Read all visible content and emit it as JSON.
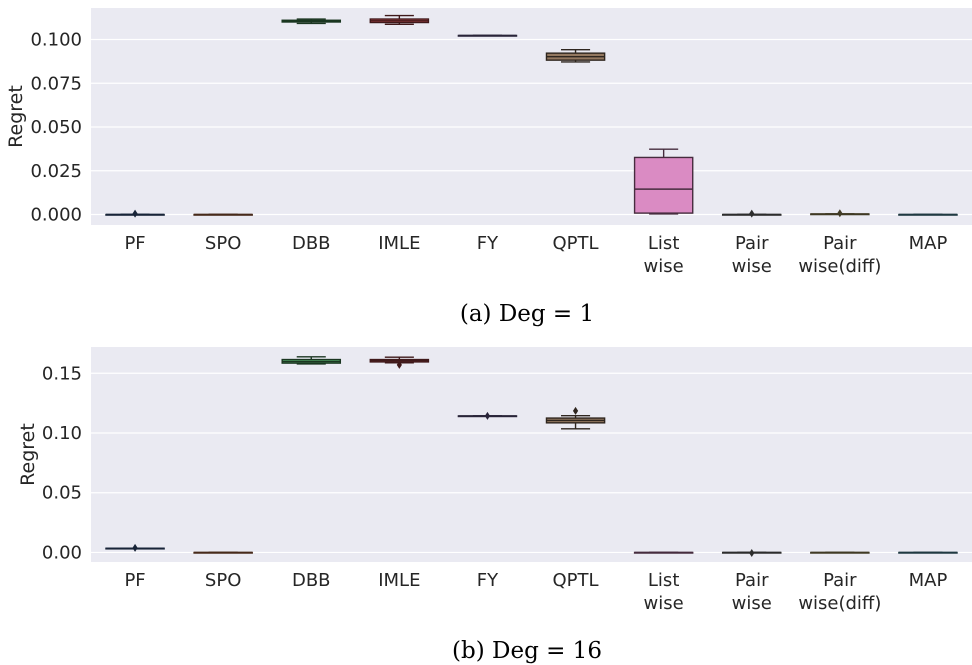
{
  "chart_data": [
    {
      "type": "box",
      "caption": "(a) Deg = 1",
      "ylabel": "Regret",
      "ylim": [
        -0.006,
        0.118
      ],
      "yticks": [
        0.0,
        0.025,
        0.05,
        0.075,
        0.1
      ],
      "ytick_labels": [
        "0.000",
        "0.025",
        "0.050",
        "0.075",
        "0.100"
      ],
      "grid": true,
      "categories": [
        [
          "PF"
        ],
        [
          "SPO"
        ],
        [
          "DBB"
        ],
        [
          "IMLE"
        ],
        [
          "FY"
        ],
        [
          "QPTL"
        ],
        [
          "List",
          "wise"
        ],
        [
          "Pair",
          "wise"
        ],
        [
          "Pair",
          "wise(diff)"
        ],
        [
          "MAP"
        ]
      ],
      "boxes": [
        {
          "min": 0.0,
          "q1": 0.0,
          "median": 0.0,
          "q3": 0.0,
          "max": 0.0,
          "outliers": [
            0.0005
          ],
          "color": "#4c72b0"
        },
        {
          "min": 0.0,
          "q1": 0.0,
          "median": 0.0,
          "q3": 0.0,
          "max": 0.0,
          "outliers": [],
          "color": "#dd8452"
        },
        {
          "min": 0.1092,
          "q1": 0.11,
          "median": 0.1105,
          "q3": 0.111,
          "max": 0.1117,
          "outliers": [],
          "color": "#55a868"
        },
        {
          "min": 0.1087,
          "q1": 0.1097,
          "median": 0.1107,
          "q3": 0.1117,
          "max": 0.1137,
          "outliers": [],
          "color": "#c44e52"
        },
        {
          "min": 0.1023,
          "q1": 0.1023,
          "median": 0.1023,
          "q3": 0.1023,
          "max": 0.1023,
          "outliers": [],
          "color": "#8172b3"
        },
        {
          "min": 0.0872,
          "q1": 0.0882,
          "median": 0.0902,
          "q3": 0.0922,
          "max": 0.0942,
          "outliers": [],
          "color": "#937860"
        },
        {
          "min": 0.0003,
          "q1": 0.0008,
          "median": 0.0145,
          "q3": 0.0326,
          "max": 0.0373,
          "outliers": [],
          "color": "#da8bc3"
        },
        {
          "min": 0.0,
          "q1": 0.0,
          "median": 0.0,
          "q3": 0.0,
          "max": 0.0,
          "outliers": [
            0.0005
          ],
          "color": "#8c8c8c"
        },
        {
          "min": 0.0003,
          "q1": 0.0003,
          "median": 0.0003,
          "q3": 0.0003,
          "max": 0.0003,
          "outliers": [
            0.0007
          ],
          "color": "#ccb974"
        },
        {
          "min": 0.0,
          "q1": 0.0,
          "median": 0.0,
          "q3": 0.0,
          "max": 0.0,
          "outliers": [],
          "color": "#64b5cd"
        }
      ]
    },
    {
      "type": "box",
      "caption": "(b) Deg = 16",
      "ylabel": "Regret",
      "ylim": [
        -0.008,
        0.172
      ],
      "yticks": [
        0.0,
        0.05,
        0.1,
        0.15
      ],
      "ytick_labels": [
        "0.00",
        "0.05",
        "0.10",
        "0.15"
      ],
      "grid": true,
      "categories": [
        [
          "PF"
        ],
        [
          "SPO"
        ],
        [
          "DBB"
        ],
        [
          "IMLE"
        ],
        [
          "FY"
        ],
        [
          "QPTL"
        ],
        [
          "List",
          "wise"
        ],
        [
          "Pair",
          "wise"
        ],
        [
          "Pair",
          "wise(diff)"
        ],
        [
          "MAP"
        ]
      ],
      "boxes": [
        {
          "min": 0.0035,
          "q1": 0.0035,
          "median": 0.0035,
          "q3": 0.0035,
          "max": 0.0035,
          "outliers": [
            0.0038
          ],
          "color": "#4c72b0"
        },
        {
          "min": 0.0,
          "q1": 0.0,
          "median": 0.0,
          "q3": 0.0,
          "max": 0.0,
          "outliers": [],
          "color": "#dd8452"
        },
        {
          "min": 0.1578,
          "q1": 0.1585,
          "median": 0.1598,
          "q3": 0.1615,
          "max": 0.1638,
          "outliers": [],
          "color": "#55a868"
        },
        {
          "min": 0.1588,
          "q1": 0.1595,
          "median": 0.1605,
          "q3": 0.1615,
          "max": 0.1635,
          "outliers": [
            0.157
          ],
          "color": "#c44e52"
        },
        {
          "min": 0.1143,
          "q1": 0.1143,
          "median": 0.1143,
          "q3": 0.1143,
          "max": 0.1143,
          "outliers": [
            0.1143
          ],
          "color": "#8172b3"
        },
        {
          "min": 0.1035,
          "q1": 0.1085,
          "median": 0.1105,
          "q3": 0.1125,
          "max": 0.1145,
          "outliers": [
            0.1185
          ],
          "color": "#937860"
        },
        {
          "min": 0.0,
          "q1": 0.0,
          "median": 0.0,
          "q3": 0.0,
          "max": 0.0,
          "outliers": [],
          "color": "#da8bc3"
        },
        {
          "min": 0.0,
          "q1": 0.0,
          "median": 0.0,
          "q3": 0.0,
          "max": 0.0,
          "outliers": [
            -0.0005
          ],
          "color": "#8c8c8c"
        },
        {
          "min": 0.0,
          "q1": 0.0,
          "median": 0.0,
          "q3": 0.0,
          "max": 0.0,
          "outliers": [],
          "color": "#ccb974"
        },
        {
          "min": 0.0,
          "q1": 0.0,
          "median": 0.0,
          "q3": 0.0,
          "max": 0.0,
          "outliers": [],
          "color": "#64b5cd"
        }
      ]
    }
  ]
}
